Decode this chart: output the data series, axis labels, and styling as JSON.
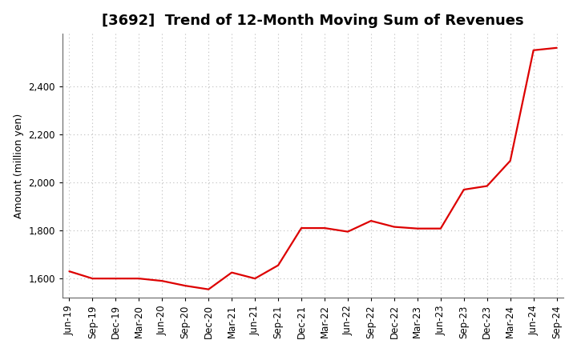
{
  "title": "[3692]  Trend of 12-Month Moving Sum of Revenues",
  "ylabel": "Amount (million yen)",
  "background_color": "#ffffff",
  "plot_bg_color": "#ffffff",
  "line_color": "#dd0000",
  "line_width": 1.6,
  "grid_color": "#bbbbbb",
  "ylim": [
    1520,
    2620
  ],
  "yticks": [
    1600,
    1800,
    2000,
    2200,
    2400
  ],
  "x_labels": [
    "Jun-19",
    "Sep-19",
    "Dec-19",
    "Mar-20",
    "Jun-20",
    "Sep-20",
    "Dec-20",
    "Mar-21",
    "Jun-21",
    "Sep-21",
    "Dec-21",
    "Mar-22",
    "Jun-22",
    "Sep-22",
    "Dec-22",
    "Mar-23",
    "Jun-23",
    "Sep-23",
    "Dec-23",
    "Mar-24",
    "Jun-24",
    "Sep-24"
  ],
  "values": [
    1630,
    1600,
    1600,
    1600,
    1590,
    1570,
    1555,
    1625,
    1600,
    1655,
    1810,
    1810,
    1795,
    1840,
    1815,
    1808,
    1808,
    1970,
    1985,
    2090,
    2550,
    2560
  ],
  "title_fontsize": 13,
  "ylabel_fontsize": 9,
  "tick_fontsize": 8.5
}
